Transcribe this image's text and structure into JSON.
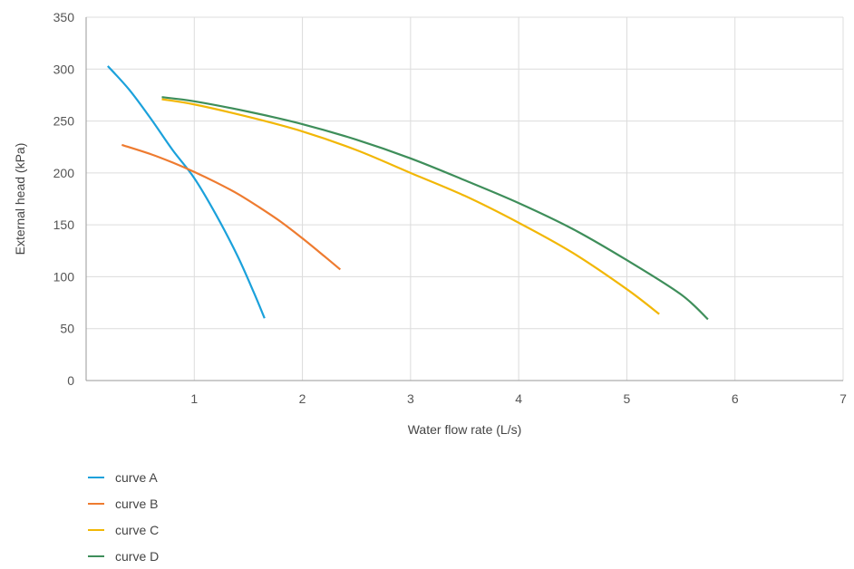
{
  "chart_data": {
    "type": "line",
    "title": "",
    "xlabel": "Water flow rate (L/s)",
    "ylabel": "External head (kPa)",
    "xlim": [
      0,
      7
    ],
    "ylim": [
      0,
      350
    ],
    "xticks": [
      "1",
      "2",
      "3",
      "4",
      "5",
      "6",
      "7"
    ],
    "yticks": [
      "0",
      "50",
      "100",
      "150",
      "200",
      "250",
      "300",
      "350"
    ],
    "grid": "vertical and horizontal",
    "legend_position": "bottom-left",
    "series": [
      {
        "name": "curve A",
        "color": "#1BA1DB",
        "x": [
          0.2,
          0.4,
          0.6,
          0.8,
          1.0,
          1.2,
          1.4,
          1.55,
          1.65
        ],
        "y": [
          303,
          280,
          252,
          222,
          195,
          160,
          120,
          85,
          60
        ]
      },
      {
        "name": "curve B",
        "color": "#EE7B30",
        "x": [
          0.33,
          0.6,
          0.8,
          1.0,
          1.2,
          1.4,
          1.6,
          1.8,
          2.0,
          2.2,
          2.35
        ],
        "y": [
          227,
          218,
          210,
          201,
          191,
          180,
          167,
          153,
          137,
          120,
          107
        ]
      },
      {
        "name": "curve C",
        "color": "#F2B705",
        "x": [
          0.7,
          1.0,
          1.5,
          2.0,
          2.5,
          3.0,
          3.5,
          4.0,
          4.5,
          5.0,
          5.3
        ],
        "y": [
          271,
          266,
          254,
          240,
          222,
          200,
          178,
          152,
          123,
          88,
          64
        ]
      },
      {
        "name": "curve D",
        "color": "#3E8E5A",
        "x": [
          0.7,
          1.0,
          1.5,
          2.0,
          2.5,
          3.0,
          3.5,
          4.0,
          4.5,
          5.0,
          5.5,
          5.75
        ],
        "y": [
          273,
          269,
          259,
          247,
          232,
          214,
          193,
          171,
          146,
          116,
          83,
          59
        ]
      }
    ]
  }
}
